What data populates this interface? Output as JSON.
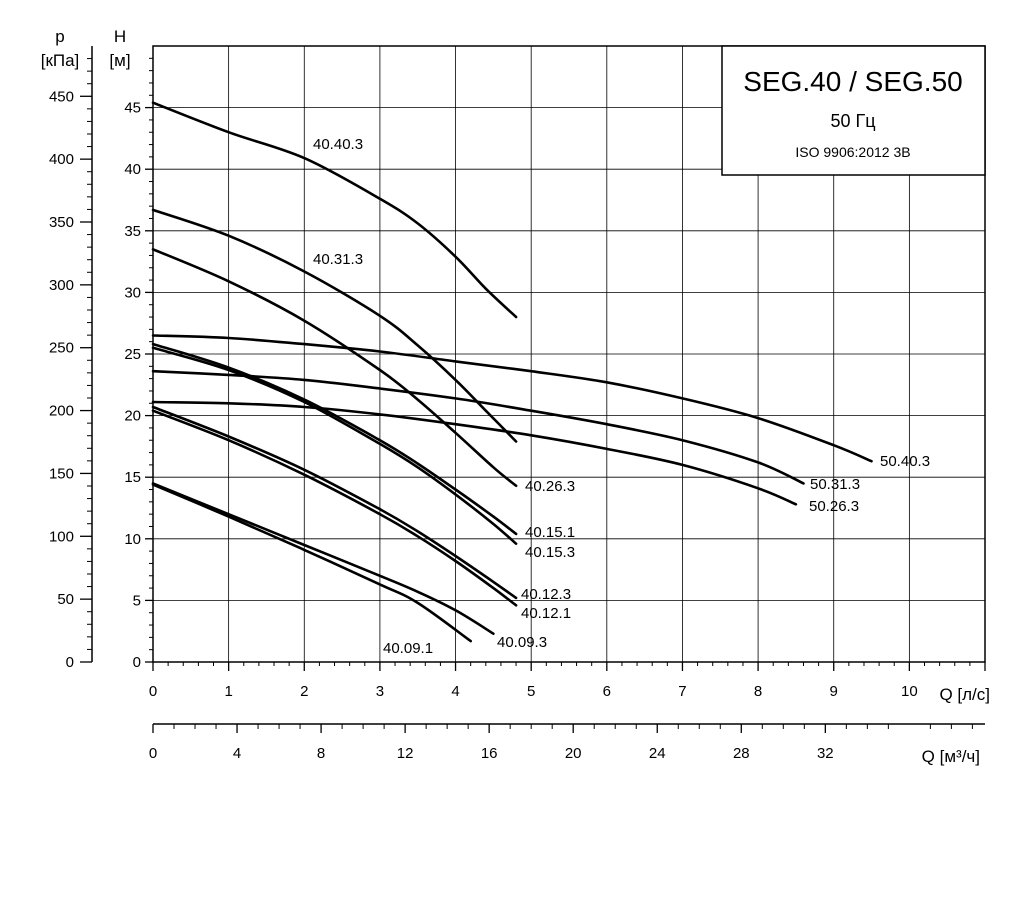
{
  "chart_data": {
    "type": "line",
    "title": "SEG.40 / SEG.50",
    "frequency": "50 Гц",
    "standard": "ISO 9906:2012 3B",
    "x_axis": {
      "label": "Q [л/с]",
      "range": [
        0,
        11
      ],
      "ticks": [
        "0",
        "1",
        "2",
        "3",
        "4",
        "5",
        "6",
        "7",
        "8",
        "9",
        "10"
      ]
    },
    "x2_axis": {
      "label": "Q [м³/ч]",
      "range": [
        0,
        39.6
      ],
      "ticks": [
        "0",
        "4",
        "8",
        "12",
        "16",
        "20",
        "24",
        "28",
        "32"
      ]
    },
    "y_axis": {
      "symbol": "H",
      "unit": "[м]",
      "range": [
        0,
        50
      ],
      "ticks": [
        "0",
        "5",
        "10",
        "15",
        "20",
        "25",
        "30",
        "35",
        "40",
        "45"
      ]
    },
    "y2_axis": {
      "symbol": "p",
      "unit": "[кПа]",
      "range": [
        0,
        490
      ],
      "ticks": [
        "0",
        "50",
        "100",
        "150",
        "200",
        "250",
        "300",
        "350",
        "400",
        "450"
      ]
    },
    "grid": true,
    "series": [
      {
        "name": "40.40.3",
        "points": [
          [
            0,
            45.4
          ],
          [
            1,
            43.0
          ],
          [
            2,
            40.9
          ],
          [
            3,
            37.6
          ],
          [
            3.5,
            35.6
          ],
          [
            4,
            32.9
          ],
          [
            4.4,
            30.3
          ],
          [
            4.8,
            28.0
          ]
        ]
      },
      {
        "name": "40.31.3",
        "points": [
          [
            0,
            36.7
          ],
          [
            1,
            34.6
          ],
          [
            2,
            31.7
          ],
          [
            3,
            28.1
          ],
          [
            3.5,
            25.7
          ],
          [
            4,
            22.9
          ],
          [
            4.4,
            20.4
          ],
          [
            4.8,
            17.9
          ]
        ]
      },
      {
        "name": "40.26.3",
        "points": [
          [
            0,
            33.5
          ],
          [
            1,
            30.9
          ],
          [
            2,
            27.7
          ],
          [
            3,
            23.7
          ],
          [
            3.5,
            21.3
          ],
          [
            4,
            18.6
          ],
          [
            4.5,
            15.8
          ],
          [
            4.8,
            14.3
          ]
        ]
      },
      {
        "name": "40.15.1",
        "points": [
          [
            0,
            25.8
          ],
          [
            1,
            23.9
          ],
          [
            2,
            21.3
          ],
          [
            3,
            18.0
          ],
          [
            3.5,
            16.1
          ],
          [
            4,
            14.0
          ],
          [
            4.5,
            11.8
          ],
          [
            4.8,
            10.4
          ]
        ]
      },
      {
        "name": "40.15.3",
        "points": [
          [
            0,
            25.5
          ],
          [
            1,
            23.7
          ],
          [
            2,
            21.1
          ],
          [
            3,
            17.7
          ],
          [
            3.5,
            15.8
          ],
          [
            4,
            13.6
          ],
          [
            4.5,
            11.2
          ],
          [
            4.8,
            9.6
          ]
        ]
      },
      {
        "name": "40.12.3",
        "points": [
          [
            0,
            20.7
          ],
          [
            1,
            18.3
          ],
          [
            2,
            15.6
          ],
          [
            3,
            12.4
          ],
          [
            3.5,
            10.6
          ],
          [
            4,
            8.6
          ],
          [
            4.5,
            6.5
          ],
          [
            4.8,
            5.2
          ]
        ]
      },
      {
        "name": "40.12.1",
        "points": [
          [
            0,
            20.4
          ],
          [
            1,
            18.0
          ],
          [
            2,
            15.2
          ],
          [
            3,
            12.0
          ],
          [
            3.5,
            10.2
          ],
          [
            4,
            8.2
          ],
          [
            4.5,
            6.0
          ],
          [
            4.8,
            4.6
          ]
        ]
      },
      {
        "name": "40.09.3",
        "points": [
          [
            0,
            14.5
          ],
          [
            1,
            12.0
          ],
          [
            2,
            9.5
          ],
          [
            3,
            7.0
          ],
          [
            3.5,
            5.7
          ],
          [
            4,
            4.2
          ],
          [
            4.5,
            2.3
          ]
        ]
      },
      {
        "name": "40.09.1",
        "points": [
          [
            0,
            14.4
          ],
          [
            1,
            11.8
          ],
          [
            2,
            9.1
          ],
          [
            3,
            6.3
          ],
          [
            3.5,
            4.8
          ],
          [
            4.2,
            1.7
          ]
        ]
      },
      {
        "name": "50.40.3",
        "points": [
          [
            0,
            26.5
          ],
          [
            1,
            26.3
          ],
          [
            2,
            25.8
          ],
          [
            3,
            25.2
          ],
          [
            4,
            24.4
          ],
          [
            5,
            23.6
          ],
          [
            6,
            22.7
          ],
          [
            7,
            21.4
          ],
          [
            8,
            19.8
          ],
          [
            9,
            17.6
          ],
          [
            9.5,
            16.3
          ]
        ]
      },
      {
        "name": "50.31.3",
        "points": [
          [
            0,
            23.6
          ],
          [
            1,
            23.3
          ],
          [
            2,
            22.9
          ],
          [
            3,
            22.2
          ],
          [
            4,
            21.4
          ],
          [
            5,
            20.4
          ],
          [
            6,
            19.3
          ],
          [
            7,
            18.0
          ],
          [
            8,
            16.2
          ],
          [
            8.6,
            14.5
          ]
        ]
      },
      {
        "name": "50.26.3",
        "points": [
          [
            0,
            21.1
          ],
          [
            1,
            21.0
          ],
          [
            2,
            20.7
          ],
          [
            3,
            20.1
          ],
          [
            4,
            19.3
          ],
          [
            5,
            18.4
          ],
          [
            6,
            17.3
          ],
          [
            7,
            16.0
          ],
          [
            8,
            14.1
          ],
          [
            8.5,
            12.8
          ]
        ]
      }
    ]
  }
}
